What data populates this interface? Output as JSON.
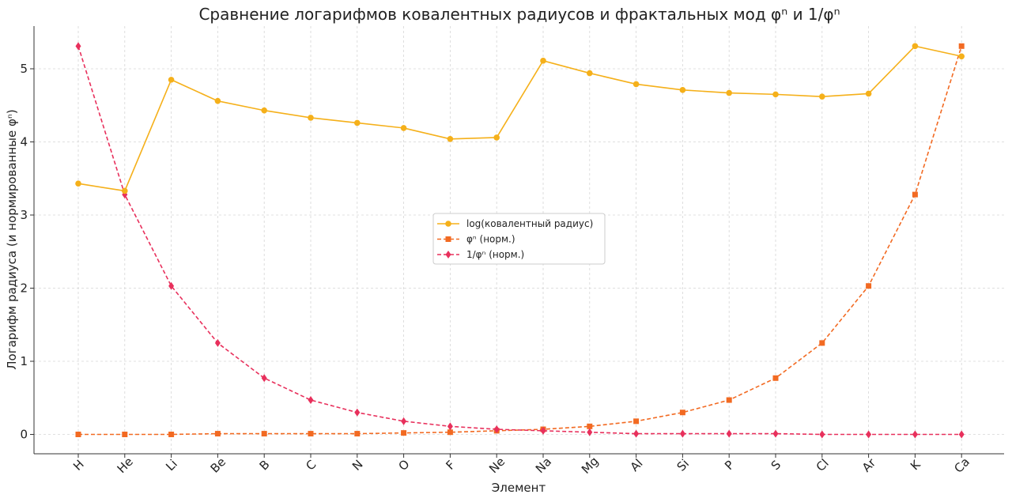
{
  "chart_data": {
    "type": "line",
    "title": "Сравнение логарифмов ковалентных радиусов и фрактальных мод φⁿ и 1/φⁿ",
    "xlabel": "Элемент",
    "ylabel": "Логарифм радиуса (и нормированные φⁿ)",
    "categories": [
      "H",
      "He",
      "Li",
      "Be",
      "B",
      "C",
      "N",
      "O",
      "F",
      "Ne",
      "Na",
      "Mg",
      "Al",
      "Si",
      "P",
      "S",
      "Cl",
      "Ar",
      "K",
      "Ca"
    ],
    "ylim": [
      -0.25,
      5.6
    ],
    "yticks": [
      0,
      1,
      2,
      3,
      4,
      5
    ],
    "grid": true,
    "legend_position": "center",
    "series": [
      {
        "name": "log(ковалентный радиус)",
        "color": "#f5b01a",
        "marker": "circle",
        "line_style": "solid",
        "values": [
          3.43,
          3.33,
          4.85,
          4.56,
          4.43,
          4.33,
          4.26,
          4.19,
          4.04,
          4.06,
          5.11,
          4.94,
          4.79,
          4.71,
          4.67,
          4.65,
          4.62,
          4.66,
          5.31,
          5.17
        ]
      },
      {
        "name": "φⁿ (норм.)",
        "color": "#f26a22",
        "marker": "square",
        "line_style": "dashed",
        "values": [
          0.0,
          0.0,
          0.0,
          0.01,
          0.01,
          0.01,
          0.01,
          0.02,
          0.03,
          0.05,
          0.07,
          0.11,
          0.18,
          0.3,
          0.47,
          0.77,
          1.25,
          2.03,
          3.28,
          5.31
        ]
      },
      {
        "name": "1/φⁿ (норм.)",
        "color": "#e8305c",
        "marker": "diamond",
        "line_style": "dashed",
        "values": [
          5.31,
          3.28,
          2.03,
          1.25,
          0.77,
          0.47,
          0.3,
          0.18,
          0.11,
          0.07,
          0.05,
          0.03,
          0.01,
          0.01,
          0.01,
          0.01,
          0.0,
          0.0,
          0.0,
          0.0
        ]
      }
    ]
  }
}
